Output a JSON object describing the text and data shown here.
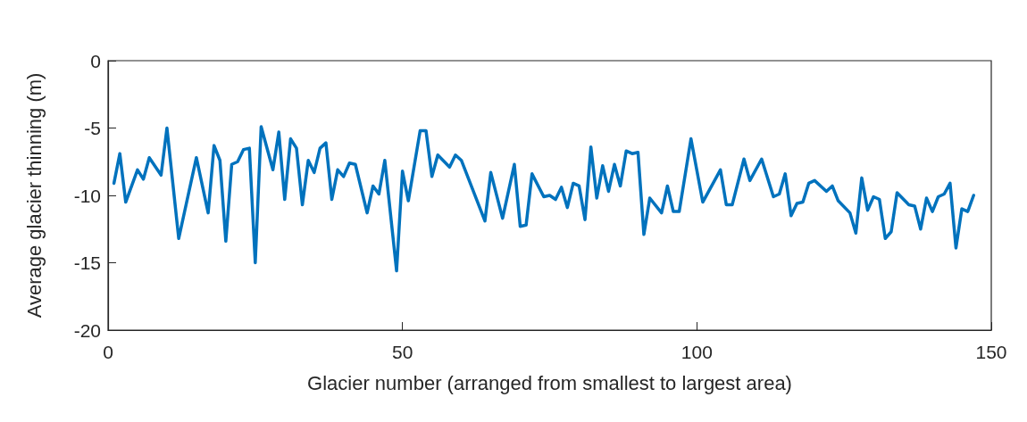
{
  "chart_data": {
    "type": "line",
    "xlabel": "Glacier number (arranged from smallest to largest area)",
    "ylabel": "Average glacier thinning (m)",
    "xlim": [
      0,
      150
    ],
    "xticks": [
      0,
      50,
      100,
      150
    ],
    "ylim": [
      -20,
      0
    ],
    "yticks": [
      -20,
      -15,
      -10,
      -5,
      0
    ],
    "marker": "none",
    "line_style": "solid",
    "series": [
      {
        "color": "#0072bd",
        "x": [
          1,
          2,
          3,
          5,
          6,
          7,
          9,
          10,
          12,
          15,
          17,
          18,
          19,
          20,
          21,
          22,
          23,
          24,
          25,
          26,
          28,
          29,
          30,
          31,
          32,
          33,
          34,
          35,
          36,
          37,
          38,
          39,
          40,
          41,
          42,
          44,
          45,
          46,
          47,
          49,
          50,
          51,
          53,
          54,
          55,
          56,
          58,
          59,
          60,
          64,
          65,
          67,
          69,
          70,
          71,
          72,
          74,
          75,
          76,
          77,
          78,
          79,
          80,
          81,
          82,
          83,
          84,
          85,
          86,
          87,
          88,
          89,
          90,
          91,
          92,
          94,
          95,
          96,
          97,
          99,
          101,
          104,
          105,
          106,
          108,
          109,
          111,
          113,
          114,
          115,
          116,
          117,
          118,
          119,
          120,
          122,
          123,
          124,
          126,
          127,
          128,
          129,
          130,
          131,
          132,
          133,
          134,
          136,
          137,
          138,
          139,
          140,
          141,
          142,
          143,
          144,
          145,
          146,
          147
        ],
        "values": [
          -9.1,
          -6.9,
          -10.5,
          -8.1,
          -8.8,
          -7.2,
          -8.5,
          -5.0,
          -13.2,
          -7.2,
          -11.3,
          -6.3,
          -7.4,
          -13.4,
          -7.7,
          -7.5,
          -6.6,
          -6.5,
          -15.0,
          -4.9,
          -8.1,
          -5.3,
          -10.3,
          -5.8,
          -6.5,
          -10.7,
          -7.4,
          -8.3,
          -6.5,
          -6.1,
          -10.3,
          -8.1,
          -8.6,
          -7.6,
          -7.7,
          -11.3,
          -9.3,
          -9.9,
          -7.4,
          -15.6,
          -8.2,
          -10.4,
          -5.2,
          -5.2,
          -8.6,
          -7.0,
          -7.9,
          -7.0,
          -7.4,
          -11.9,
          -8.3,
          -11.7,
          -7.7,
          -12.3,
          -12.2,
          -8.4,
          -10.1,
          -10.0,
          -10.3,
          -9.4,
          -10.9,
          -9.1,
          -9.3,
          -11.8,
          -6.4,
          -10.2,
          -7.8,
          -9.7,
          -7.7,
          -9.3,
          -6.7,
          -6.9,
          -6.8,
          -12.9,
          -10.2,
          -11.3,
          -9.3,
          -11.2,
          -11.2,
          -5.8,
          -10.5,
          -8.1,
          -10.7,
          -10.7,
          -7.3,
          -8.9,
          -7.3,
          -10.1,
          -9.9,
          -8.4,
          -11.5,
          -10.6,
          -10.5,
          -9.1,
          -8.9,
          -9.7,
          -9.3,
          -10.4,
          -11.3,
          -12.8,
          -8.7,
          -11.1,
          -10.1,
          -10.3,
          -13.2,
          -12.7,
          -9.8,
          -10.7,
          -10.8,
          -12.5,
          -10.2,
          -11.2,
          -10.1,
          -9.9,
          -9.1,
          -13.9,
          -11.0,
          -11.2,
          -10.0
        ]
      }
    ]
  }
}
